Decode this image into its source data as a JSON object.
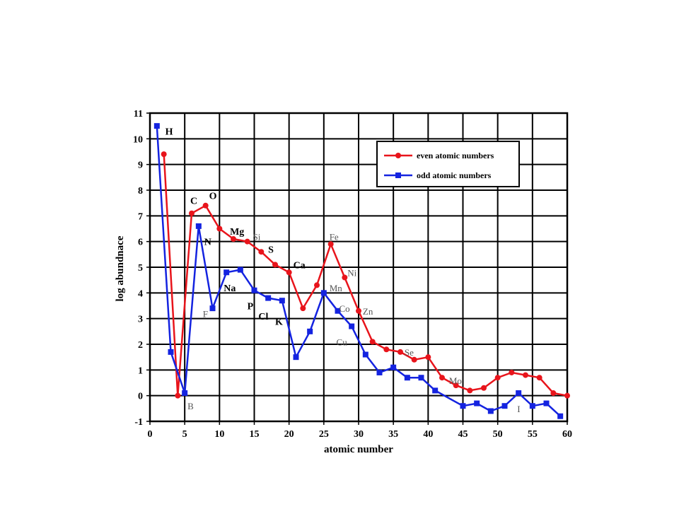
{
  "chart_data": {
    "type": "line",
    "xlabel": "atomic number",
    "ylabel": "log abundnace",
    "xlim": [
      0,
      60
    ],
    "ylim": [
      -1,
      11
    ],
    "xticks": [
      "0",
      "5",
      "10",
      "15",
      "20",
      "25",
      "30",
      "35",
      "40",
      "45",
      "50",
      "55",
      "60"
    ],
    "yticks": [
      "-1",
      "0",
      "1",
      "2",
      "3",
      "4",
      "5",
      "6",
      "7",
      "8",
      "9",
      "10",
      "11"
    ],
    "grid": true,
    "legend_position": "top-right",
    "series": [
      {
        "name": "even atomic numbers",
        "color": "#e8141b",
        "marker": "circle",
        "points": [
          [
            2,
            9.4
          ],
          [
            4,
            0.0
          ],
          [
            6,
            7.1
          ],
          [
            8,
            7.4
          ],
          [
            10,
            6.5
          ],
          [
            12,
            6.1
          ],
          [
            14,
            6.0
          ],
          [
            16,
            5.6
          ],
          [
            18,
            5.1
          ],
          [
            20,
            4.8
          ],
          [
            22,
            3.4
          ],
          [
            24,
            4.3
          ],
          [
            26,
            5.9
          ],
          [
            28,
            4.6
          ],
          [
            30,
            3.3
          ],
          [
            32,
            2.1
          ],
          [
            34,
            1.8
          ],
          [
            36,
            1.7
          ],
          [
            38,
            1.4
          ],
          [
            40,
            1.5
          ],
          [
            42,
            0.7
          ],
          [
            44,
            0.4
          ],
          [
            46,
            0.2
          ],
          [
            48,
            0.3
          ],
          [
            50,
            0.7
          ],
          [
            52,
            0.9
          ],
          [
            54,
            0.8
          ],
          [
            56,
            0.7
          ],
          [
            58,
            0.1
          ],
          [
            60,
            0.0
          ]
        ]
      },
      {
        "name": "odd atomic numbers",
        "color": "#1423e0",
        "marker": "square",
        "points": [
          [
            1,
            10.5
          ],
          [
            3,
            1.7
          ],
          [
            5,
            0.1
          ],
          [
            7,
            6.6
          ],
          [
            9,
            3.4
          ],
          [
            11,
            4.8
          ],
          [
            13,
            4.9
          ],
          [
            15,
            4.1
          ],
          [
            17,
            3.8
          ],
          [
            19,
            3.7
          ],
          [
            21,
            1.5
          ],
          [
            23,
            2.5
          ],
          [
            25,
            4.0
          ],
          [
            27,
            3.3
          ],
          [
            29,
            2.7
          ],
          [
            31,
            1.6
          ],
          [
            33,
            0.9
          ],
          [
            35,
            1.1
          ],
          [
            37,
            0.7
          ],
          [
            39,
            0.7
          ],
          [
            41,
            0.2
          ],
          [
            45,
            -0.4
          ],
          [
            47,
            -0.3
          ],
          [
            49,
            -0.6
          ],
          [
            51,
            -0.4
          ],
          [
            53,
            0.1
          ],
          [
            55,
            -0.4
          ],
          [
            57,
            -0.3
          ],
          [
            59,
            -0.8
          ]
        ]
      }
    ],
    "annotations": [
      {
        "text": "H",
        "x": 2.2,
        "y": 10.3,
        "style": "bold"
      },
      {
        "text": "C",
        "x": 5.8,
        "y": 7.6,
        "style": "bold"
      },
      {
        "text": "O",
        "x": 8.5,
        "y": 7.8,
        "style": "bold"
      },
      {
        "text": "N",
        "x": 7.8,
        "y": 6.0,
        "style": "bold"
      },
      {
        "text": "Mg",
        "x": 11.5,
        "y": 6.4,
        "style": "bold"
      },
      {
        "text": "Si",
        "x": 14.8,
        "y": 6.2,
        "style": "light"
      },
      {
        "text": "S",
        "x": 17.0,
        "y": 5.7,
        "style": "bold"
      },
      {
        "text": "Ca",
        "x": 20.6,
        "y": 5.1,
        "style": "bold"
      },
      {
        "text": "Na",
        "x": 10.6,
        "y": 4.2,
        "style": "bold"
      },
      {
        "text": "F",
        "x": 7.6,
        "y": 3.2,
        "style": "light"
      },
      {
        "text": "P",
        "x": 14.0,
        "y": 3.5,
        "style": "bold"
      },
      {
        "text": "Cl",
        "x": 15.6,
        "y": 3.1,
        "style": "bold"
      },
      {
        "text": "K",
        "x": 18.0,
        "y": 2.9,
        "style": "bold"
      },
      {
        "text": "B",
        "x": 5.4,
        "y": -0.4,
        "style": "light"
      },
      {
        "text": "Fe",
        "x": 25.8,
        "y": 6.2,
        "style": "light"
      },
      {
        "text": "Ni",
        "x": 28.4,
        "y": 4.8,
        "style": "light"
      },
      {
        "text": "Mn",
        "x": 25.8,
        "y": 4.2,
        "style": "light"
      },
      {
        "text": "Co",
        "x": 27.2,
        "y": 3.4,
        "style": "light"
      },
      {
        "text": "Zn",
        "x": 30.6,
        "y": 3.3,
        "style": "light"
      },
      {
        "text": "Cu",
        "x": 26.8,
        "y": 2.1,
        "style": "light"
      },
      {
        "text": "Se",
        "x": 36.6,
        "y": 1.7,
        "style": "light"
      },
      {
        "text": "Mo",
        "x": 43.0,
        "y": 0.6,
        "style": "light"
      },
      {
        "text": "I",
        "x": 52.8,
        "y": -0.5,
        "style": "light"
      }
    ]
  }
}
